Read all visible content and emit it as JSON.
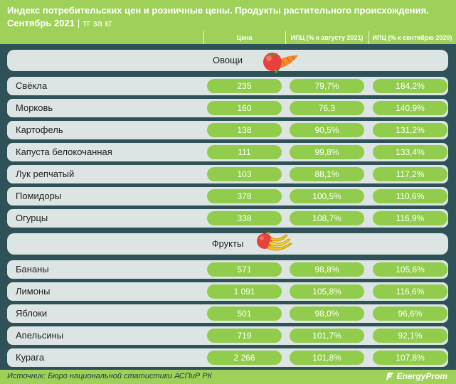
{
  "header": {
    "title": "Индекс потребительских цен и розничные цены. Продукты растительного происхождения.",
    "period": "Сентябрь 2021",
    "unit": "тг за кг",
    "columns": [
      "Цена",
      "ИПЦ (% к августу 2021)",
      "ИПЦ (% к сентябрю 2020)"
    ]
  },
  "sections": [
    {
      "label": "Овощи",
      "icon": "vegetables-icon",
      "rows": [
        {
          "name": "Свёкла",
          "price": "235",
          "cpi_aug": "79,7%",
          "cpi_sep": "184,2%"
        },
        {
          "name": "Морковь",
          "price": "160",
          "cpi_aug": "76,3",
          "cpi_sep": "140,9%"
        },
        {
          "name": "Картофель",
          "price": "138",
          "cpi_aug": "90,5%",
          "cpi_sep": "131,2%"
        },
        {
          "name": "Капуста белокочанная",
          "price": "111",
          "cpi_aug": "99,8%",
          "cpi_sep": "133,4%"
        },
        {
          "name": "Лук репчатый",
          "price": "103",
          "cpi_aug": "88,1%",
          "cpi_sep": "117,2%"
        },
        {
          "name": "Помидоры",
          "price": "378",
          "cpi_aug": "100,5%",
          "cpi_sep": "110,6%"
        },
        {
          "name": "Огурцы",
          "price": "338",
          "cpi_aug": "108,7%",
          "cpi_sep": "116,9%"
        }
      ]
    },
    {
      "label": "Фрукты",
      "icon": "fruits-icon",
      "rows": [
        {
          "name": "Бананы",
          "price": "571",
          "cpi_aug": "98,8%",
          "cpi_sep": "105,6%"
        },
        {
          "name": "Лимоны",
          "price": "1 091",
          "cpi_aug": "105,8%",
          "cpi_sep": "116,6%"
        },
        {
          "name": "Яблоки",
          "price": "501",
          "cpi_aug": "98,0%",
          "cpi_sep": "96,6%"
        },
        {
          "name": "Апельсины",
          "price": "719",
          "cpi_aug": "101,7%",
          "cpi_sep": "92,1%"
        },
        {
          "name": "Курага",
          "price": "2 266",
          "cpi_aug": "101,8%",
          "cpi_sep": "107,8%"
        }
      ]
    }
  ],
  "footer": {
    "source": "Источник: Бюро национальной статистики АСПиР РК",
    "brand": "EnergyProm"
  },
  "colors": {
    "header_green": "#9fd15a",
    "pill_green": "#92cc4c",
    "background": "#2e5257",
    "row_bg": "#dde5e4"
  },
  "chart_data": {
    "type": "table",
    "title": "Индекс потребительских цен и розничные цены. Продукты растительного происхождения.",
    "columns": [
      "Цена",
      "ИПЦ (% к августу 2021)",
      "ИПЦ (% к сентябрю 2020)"
    ],
    "groups": [
      {
        "name": "Овощи",
        "rows": [
          [
            "Свёкла",
            235,
            79.7,
            184.2
          ],
          [
            "Морковь",
            160,
            76.3,
            140.9
          ],
          [
            "Картофель",
            138,
            90.5,
            131.2
          ],
          [
            "Капуста белокочанная",
            111,
            99.8,
            133.4
          ],
          [
            "Лук репчатый",
            103,
            88.1,
            117.2
          ],
          [
            "Помидоры",
            378,
            100.5,
            110.6
          ],
          [
            "Огурцы",
            338,
            108.7,
            116.9
          ]
        ]
      },
      {
        "name": "Фрукты",
        "rows": [
          [
            "Бананы",
            571,
            98.8,
            105.6
          ],
          [
            "Лимоны",
            1091,
            105.8,
            116.6
          ],
          [
            "Яблоки",
            501,
            98.0,
            96.6
          ],
          [
            "Апельсины",
            719,
            101.7,
            92.1
          ],
          [
            "Курага",
            2266,
            101.8,
            107.8
          ]
        ]
      }
    ]
  }
}
